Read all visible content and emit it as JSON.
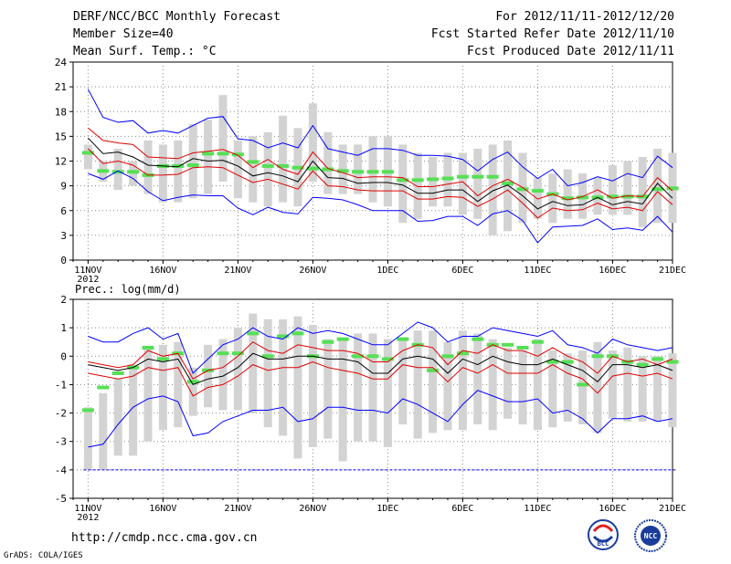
{
  "header": {
    "line1": "DERF/NCC/BCC Monthly Forecast",
    "line2": "Member Size=40",
    "line3": "Mean Surf. Temp.: °C",
    "right1": "For 2012/11/11-2012/12/20",
    "right2": "Fcst Started Refer Date 2012/11/10",
    "right3": "Fcst Produced Date 2012/11/11"
  },
  "footer": {
    "url": "http://cmdp.ncc.cma.gov.cn",
    "credit": "GrADS: COLA/IGES",
    "logo_left": "BCC",
    "logo_right": "NCC"
  },
  "colors": {
    "box": "#d3d3d3",
    "max": "#0000ff",
    "min": "#0000ff",
    "pct": "#e00000",
    "median": "#000000",
    "clim": "#55e055"
  },
  "chart_data": [
    {
      "type": "line",
      "title": "Mean Surf. Temp.: °C",
      "ylim": [
        0,
        24
      ],
      "xlim": [
        0,
        40
      ],
      "yticks": [
        0,
        3,
        6,
        9,
        12,
        15,
        18,
        21,
        24
      ],
      "xticks": [
        {
          "day": 1,
          "label": "11NOV",
          "sub": "2012"
        },
        {
          "day": 6,
          "label": "16NOV"
        },
        {
          "day": 11,
          "label": "21NOV"
        },
        {
          "day": 16,
          "label": "26NOV"
        },
        {
          "day": 21,
          "label": "1DEC"
        },
        {
          "day": 26,
          "label": "6DEC"
        },
        {
          "day": 31,
          "label": "11DEC"
        },
        {
          "day": 36,
          "label": "16DEC"
        },
        {
          "day": 40,
          "label": "21DEC"
        }
      ],
      "series": [
        {
          "name": "max",
          "values": [
            20.7,
            17.3,
            16.7,
            16.9,
            15.4,
            15.7,
            15.4,
            16.3,
            17.2,
            17.4,
            14.7,
            14.5,
            13.6,
            14.2,
            13.6,
            16.3,
            13.5,
            13.1,
            12.7,
            13.5,
            13.5,
            13.3,
            12.7,
            12.7,
            12.6,
            12.2,
            10.8,
            12.2,
            13.1,
            11.3,
            9.9,
            11.0,
            9.0,
            9.4,
            10.1,
            9.6,
            10.5,
            10.0,
            12.6,
            11.2
          ]
        },
        {
          "name": "p75",
          "values": [
            16.0,
            14.5,
            14.2,
            14.0,
            12.5,
            12.4,
            12.3,
            13.0,
            13.2,
            13.4,
            12.7,
            11.2,
            12.2,
            11.0,
            10.4,
            13.1,
            11.1,
            10.6,
            10.0,
            10.1,
            10.1,
            10.0,
            8.9,
            8.9,
            9.2,
            9.5,
            7.8,
            9.0,
            9.8,
            8.8,
            7.4,
            8.0,
            7.3,
            7.7,
            8.5,
            7.5,
            7.8,
            7.7,
            10.0,
            8.4
          ]
        },
        {
          "name": "median",
          "values": [
            14.8,
            12.9,
            13.1,
            12.5,
            11.5,
            11.4,
            11.3,
            12.3,
            12.0,
            12.1,
            11.4,
            10.2,
            10.6,
            10.2,
            9.5,
            12.0,
            10.0,
            9.9,
            9.3,
            9.4,
            9.4,
            9.1,
            8.1,
            8.1,
            8.5,
            8.5,
            7.1,
            8.4,
            9.1,
            7.8,
            6.2,
            7.1,
            6.6,
            6.7,
            7.6,
            6.7,
            7.1,
            6.8,
            9.3,
            7.5
          ]
        },
        {
          "name": "p25",
          "values": [
            13.5,
            11.7,
            12.0,
            11.5,
            10.3,
            10.3,
            10.4,
            11.2,
            11.3,
            11.2,
            10.3,
            9.4,
            9.8,
            9.2,
            8.6,
            10.8,
            9.0,
            8.9,
            8.5,
            8.4,
            8.4,
            8.4,
            7.4,
            7.4,
            7.7,
            7.6,
            6.5,
            7.4,
            8.5,
            6.9,
            5.1,
            6.3,
            6.0,
            6.1,
            6.9,
            6.2,
            6.4,
            6.0,
            8.3,
            6.7
          ]
        },
        {
          "name": "min",
          "values": [
            10.5,
            9.8,
            10.8,
            9.9,
            8.3,
            7.2,
            7.6,
            7.9,
            7.8,
            7.8,
            6.3,
            5.5,
            6.4,
            5.8,
            5.6,
            7.6,
            7.5,
            7.3,
            6.7,
            6.0,
            6.0,
            6.0,
            4.7,
            4.8,
            5.3,
            5.3,
            4.2,
            5.6,
            6.0,
            4.8,
            2.1,
            4.0,
            4.1,
            4.2,
            5.0,
            3.7,
            3.9,
            3.6,
            5.3,
            3.4
          ]
        },
        {
          "name": "clim",
          "values": [
            13.0,
            10.8,
            10.7,
            10.7,
            10.3,
            11.4,
            11.4,
            11.5,
            12.9,
            12.9,
            12.8,
            11.9,
            11.4,
            11.4,
            11.2,
            11.1,
            11.0,
            10.8,
            10.7,
            10.7,
            10.7,
            9.7,
            9.7,
            9.8,
            9.9,
            10.1,
            10.1,
            10.1,
            9.3,
            8.6,
            8.4,
            8.0,
            7.5,
            7.6,
            7.6,
            7.7,
            7.7,
            7.7,
            8.6,
            8.7
          ]
        },
        {
          "name": "box_high",
          "values": [
            14.0,
            12.0,
            13.5,
            12.0,
            14.5,
            14.0,
            14.5,
            16.5,
            17.0,
            20.0,
            14.5,
            15.0,
            15.5,
            17.5,
            16.0,
            19.0,
            15.5,
            14.0,
            14.0,
            15.0,
            15.0,
            14.0,
            13.0,
            12.5,
            13.0,
            13.0,
            13.5,
            14.0,
            14.5,
            13.0,
            10.0,
            10.5,
            11.0,
            10.5,
            10.0,
            11.5,
            12.0,
            12.5,
            13.5,
            13.0
          ]
        },
        {
          "name": "box_low",
          "values": [
            11.0,
            9.5,
            8.5,
            9.0,
            8.0,
            7.0,
            7.0,
            7.5,
            8.0,
            9.5,
            7.5,
            7.0,
            6.5,
            7.0,
            6.5,
            9.5,
            8.0,
            8.0,
            8.0,
            7.0,
            6.5,
            4.5,
            5.0,
            6.5,
            6.5,
            5.5,
            5.0,
            3.0,
            3.5,
            4.5,
            5.0,
            4.5,
            5.0,
            5.0,
            5.5,
            5.5,
            5.5,
            4.0,
            4.5,
            4.5
          ]
        }
      ]
    },
    {
      "type": "line",
      "title": "Prec.: log(mm/d)",
      "ylim": [
        -5,
        2
      ],
      "xlim": [
        0,
        40
      ],
      "yticks": [
        -5,
        -4,
        -3,
        -2,
        -1,
        0,
        1,
        2
      ],
      "xticks": [
        {
          "day": 1,
          "label": "11NOV",
          "sub": "2012"
        },
        {
          "day": 6,
          "label": "16NOV"
        },
        {
          "day": 11,
          "label": "21NOV"
        },
        {
          "day": 16,
          "label": "26NOV"
        },
        {
          "day": 21,
          "label": "1DEC"
        },
        {
          "day": 26,
          "label": "6DEC"
        },
        {
          "day": 31,
          "label": "11DEC"
        },
        {
          "day": 36,
          "label": "16DEC"
        },
        {
          "day": 40,
          "label": "21DEC"
        }
      ],
      "series": [
        {
          "name": "max",
          "values": [
            0.7,
            0.5,
            0.5,
            0.8,
            1.0,
            0.6,
            0.8,
            -0.6,
            -0.1,
            0.4,
            0.6,
            1.0,
            0.7,
            0.6,
            1.0,
            0.8,
            0.9,
            0.8,
            0.6,
            0.4,
            0.4,
            0.8,
            1.2,
            1.0,
            0.5,
            0.7,
            0.7,
            1.0,
            0.9,
            0.8,
            0.7,
            0.9,
            0.4,
            0.3,
            0.1,
            0.6,
            0.4,
            0.3,
            0.2,
            0.3
          ]
        },
        {
          "name": "p75",
          "values": [
            -0.2,
            -0.3,
            -0.4,
            -0.3,
            0.2,
            0.0,
            0.1,
            -0.8,
            -0.5,
            -0.4,
            0.0,
            0.5,
            0.2,
            0.1,
            0.4,
            0.3,
            0.2,
            0.2,
            0.1,
            -0.2,
            -0.2,
            0.2,
            0.4,
            0.3,
            -0.3,
            0.2,
            0.1,
            0.4,
            0.2,
            0.2,
            0.0,
            0.3,
            0.0,
            -0.2,
            -0.6,
            0.0,
            -0.2,
            -0.1,
            -0.3,
            -0.1
          ]
        },
        {
          "name": "median",
          "values": [
            -0.3,
            -0.4,
            -0.5,
            -0.4,
            -0.1,
            -0.2,
            -0.1,
            -1.0,
            -0.8,
            -0.7,
            -0.4,
            0.1,
            -0.1,
            -0.1,
            0.0,
            0.0,
            -0.1,
            -0.1,
            -0.2,
            -0.6,
            -0.6,
            -0.1,
            0.0,
            -0.1,
            -0.6,
            -0.1,
            -0.3,
            0.0,
            -0.2,
            -0.3,
            -0.3,
            -0.1,
            -0.3,
            -0.5,
            -0.9,
            -0.3,
            -0.3,
            -0.4,
            -0.3,
            -0.5
          ]
        },
        {
          "name": "p25",
          "values": [
            -0.6,
            -0.7,
            -0.8,
            -0.7,
            -0.4,
            -0.5,
            -0.4,
            -1.4,
            -1.1,
            -1.0,
            -0.7,
            -0.3,
            -0.5,
            -0.4,
            -0.4,
            -0.2,
            -0.4,
            -0.5,
            -0.6,
            -0.8,
            -0.8,
            -0.3,
            -0.4,
            -0.4,
            -0.9,
            -0.4,
            -0.6,
            -0.3,
            -0.6,
            -0.6,
            -0.6,
            -0.3,
            -0.6,
            -0.8,
            -1.3,
            -0.7,
            -0.6,
            -0.7,
            -0.6,
            -0.8
          ]
        },
        {
          "name": "min",
          "values": [
            -3.2,
            -3.1,
            -2.4,
            -1.8,
            -1.5,
            -1.4,
            -1.6,
            -2.8,
            -2.7,
            -2.3,
            -2.1,
            -1.9,
            -1.9,
            -1.8,
            -2.3,
            -2.2,
            -1.8,
            -1.8,
            -1.9,
            -1.9,
            -2.0,
            -1.5,
            -1.7,
            -2.0,
            -2.3,
            -1.7,
            -1.2,
            -1.4,
            -1.6,
            -1.6,
            -1.5,
            -2.0,
            -1.9,
            -2.2,
            -2.7,
            -2.2,
            -2.2,
            -2.1,
            -2.3,
            -2.2
          ]
        },
        {
          "name": "clim",
          "values": [
            -1.9,
            -1.1,
            -0.6,
            -0.4,
            0.3,
            -0.1,
            0.1,
            -0.9,
            -0.5,
            0.1,
            0.1,
            0.8,
            0.0,
            0.7,
            0.8,
            0.0,
            0.5,
            0.6,
            0.0,
            0.0,
            -0.1,
            0.6,
            0.4,
            -0.5,
            0.0,
            0.1,
            0.6,
            0.4,
            0.4,
            0.3,
            0.5,
            -0.2,
            -0.2,
            -1.0,
            0.0,
            0.0,
            -0.2,
            -0.3,
            -0.1,
            -0.2
          ]
        },
        {
          "name": "box_high",
          "values": [
            -1.8,
            -1.3,
            -0.8,
            -0.3,
            0.3,
            0.4,
            0.5,
            -0.4,
            0.4,
            0.6,
            1.0,
            1.5,
            1.3,
            1.3,
            1.4,
            1.1,
            0.6,
            0.6,
            0.8,
            0.8,
            0.6,
            0.6,
            0.9,
            0.9,
            0.5,
            0.9,
            0.8,
            0.6,
            0.3,
            0.2,
            0.6,
            0.2,
            0.1,
            0.2,
            0.5,
            0.2,
            0.3,
            0.0,
            0.0,
            0.1
          ]
        },
        {
          "name": "box_low",
          "values": [
            -4.0,
            -4.0,
            -3.5,
            -3.5,
            -3.0,
            -2.6,
            -2.5,
            -2.1,
            -1.8,
            -1.9,
            -1.9,
            -2.0,
            -2.5,
            -2.8,
            -3.6,
            -3.2,
            -2.9,
            -3.7,
            -3.0,
            -3.0,
            -3.2,
            -2.4,
            -2.9,
            -2.7,
            -2.6,
            -2.6,
            -2.4,
            -2.6,
            -2.2,
            -2.4,
            -2.6,
            -2.5,
            -2.3,
            -2.4,
            -2.7,
            -2.2,
            -2.3,
            -2.3,
            -2.3,
            -2.5
          ]
        },
        {
          "name": "floor",
          "values": [
            -4.0
          ]
        }
      ]
    }
  ]
}
